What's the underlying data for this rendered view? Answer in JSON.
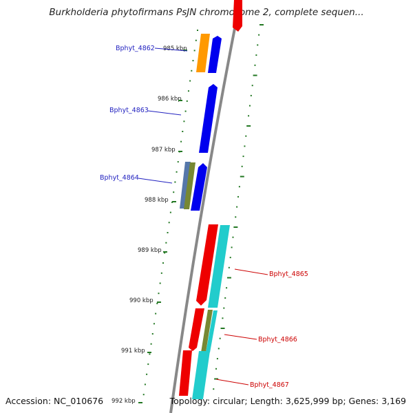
{
  "title": "Burkholderia phytofirmans PsJN chromosome 2, complete sequen...",
  "footer": {
    "accession": "Accession: NC_010676",
    "topology": "Topology: circular; Length: 3,625,999 bp; Genes: 3,169"
  },
  "kbp_labels": [
    "985 kbp",
    "986 kbp",
    "987 kbp",
    "988 kbp",
    "989 kbp",
    "990 kbp",
    "991 kbp",
    "992 kbp"
  ],
  "gene_labels": {
    "left": [
      "Bphyt_4862",
      "Bphyt_4863",
      "Bphyt_4864"
    ],
    "right": [
      "Bphyt_4865",
      "Bphyt_4866",
      "Bphyt_4867"
    ]
  },
  "colors": {
    "left_label": "#1f1fbf",
    "right_label": "#cc0000",
    "forward_gene": "#0000ee",
    "reverse_gene": "#ee0000",
    "cyan_feature": "#22cccc",
    "orange_feature": "#ff9900",
    "olive_feature": "#778833",
    "steel_feature": "#5577aa",
    "tick": "#227722",
    "backbone": "#888888"
  }
}
